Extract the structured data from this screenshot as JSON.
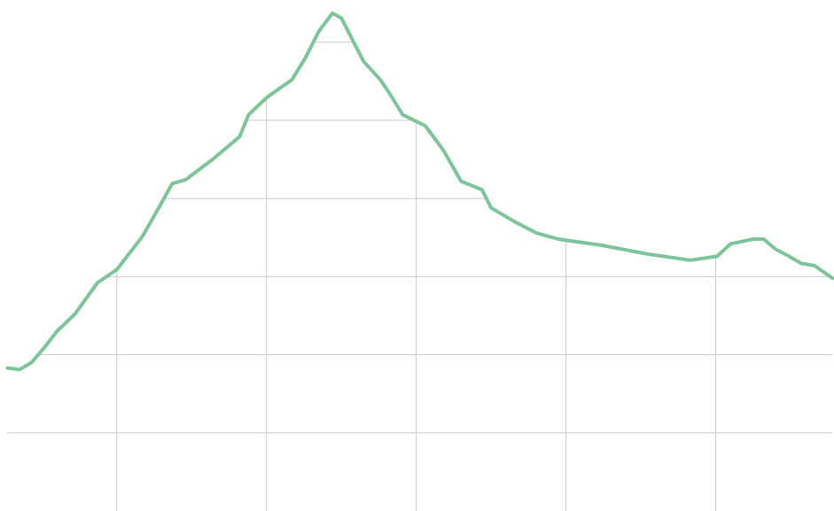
{
  "chart_data": {
    "type": "line",
    "x": [
      0.27,
      0.35,
      0.43,
      0.52,
      0.6,
      0.72,
      0.87,
      1.0,
      1.17,
      1.28,
      1.37,
      1.46,
      1.64,
      1.82,
      1.88,
      2.0,
      2.17,
      2.26,
      2.35,
      2.44,
      2.5,
      2.59,
      2.65,
      2.76,
      2.82,
      2.91,
      3.06,
      3.18,
      3.3,
      3.44,
      3.5,
      3.65,
      3.8,
      3.95,
      4.24,
      4.54,
      4.83,
      5.01,
      5.1,
      5.25,
      5.32,
      5.4,
      5.49,
      5.57,
      5.66,
      5.78
    ],
    "series": [
      {
        "color": "#7dc49a",
        "values": [
          1.83,
          1.81,
          1.9,
          2.1,
          2.3,
          2.52,
          2.92,
          3.09,
          3.51,
          3.88,
          4.19,
          4.24,
          4.5,
          4.79,
          5.07,
          5.29,
          5.52,
          5.8,
          6.14,
          6.37,
          6.31,
          5.97,
          5.75,
          5.52,
          5.35,
          5.07,
          4.93,
          4.62,
          4.22,
          4.11,
          3.88,
          3.71,
          3.56,
          3.48,
          3.4,
          3.29,
          3.21,
          3.26,
          3.42,
          3.48,
          3.48,
          3.35,
          3.26,
          3.17,
          3.14,
          2.98
        ]
      }
    ],
    "xlim": [
      0.22,
      5.79
    ],
    "ylim": [
      0,
      6.54
    ],
    "xticks": [
      1,
      2,
      3,
      4,
      5
    ],
    "yticks": [
      1,
      2,
      3,
      4,
      5,
      6
    ],
    "grid": true,
    "grid_clipped_to_area": true
  }
}
